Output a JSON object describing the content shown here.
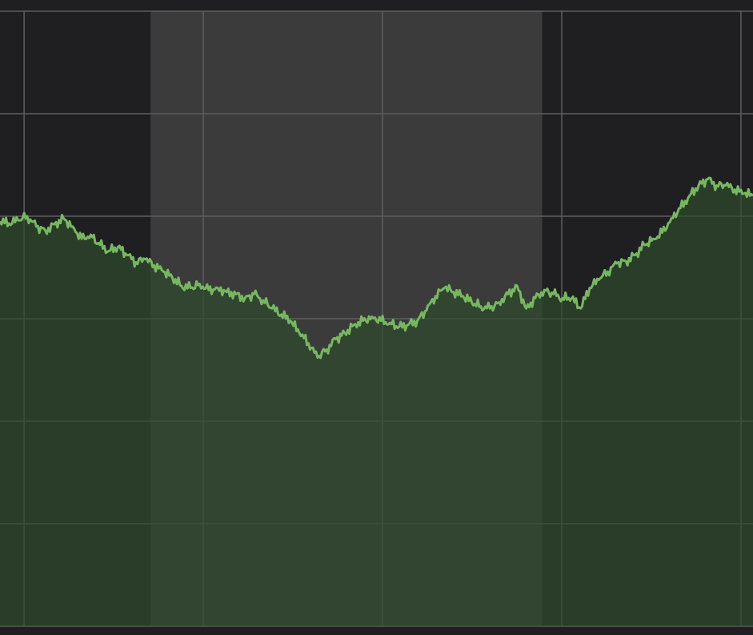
{
  "chart_data": {
    "type": "area",
    "title": "",
    "xlabel": "",
    "ylabel": "",
    "grid": true,
    "legend": "none",
    "x_range": [
      0,
      1
    ],
    "ylim": [
      0,
      6
    ],
    "highlight_range": [
      0.2,
      0.72
    ],
    "series": [
      {
        "values": [
          3.95,
          3.93,
          3.96,
          4.0,
          3.9,
          3.86,
          3.92,
          3.98,
          3.9,
          3.78,
          3.82,
          3.72,
          3.66,
          3.7,
          3.62,
          3.55,
          3.58,
          3.52,
          3.46,
          3.4,
          3.32,
          3.3,
          3.34,
          3.28,
          3.3,
          3.26,
          3.24,
          3.2,
          3.24,
          3.18,
          3.1,
          3.04,
          2.98,
          2.86,
          2.76,
          2.62,
          2.7,
          2.8,
          2.86,
          2.94,
          2.98,
          3.02,
          2.98,
          2.96,
          2.92,
          2.94,
          2.98,
          3.08,
          3.22,
          3.3,
          3.26,
          3.22,
          3.16,
          3.12,
          3.1,
          3.16,
          3.24,
          3.32,
          3.1,
          3.2,
          3.28,
          3.24,
          3.2,
          3.2,
          3.1,
          3.3,
          3.38,
          3.46,
          3.54,
          3.56,
          3.62,
          3.72,
          3.78,
          3.84,
          3.98,
          4.08,
          4.2,
          4.3,
          4.36,
          4.3,
          4.3,
          4.26,
          4.22,
          4.2
        ]
      }
    ],
    "colors": {
      "background": "#1f1f22",
      "highlight_band": "#3b3b3b",
      "grid": "#5e5e5e",
      "line": "#76b860",
      "area_fill": "#2f4a2c"
    }
  }
}
